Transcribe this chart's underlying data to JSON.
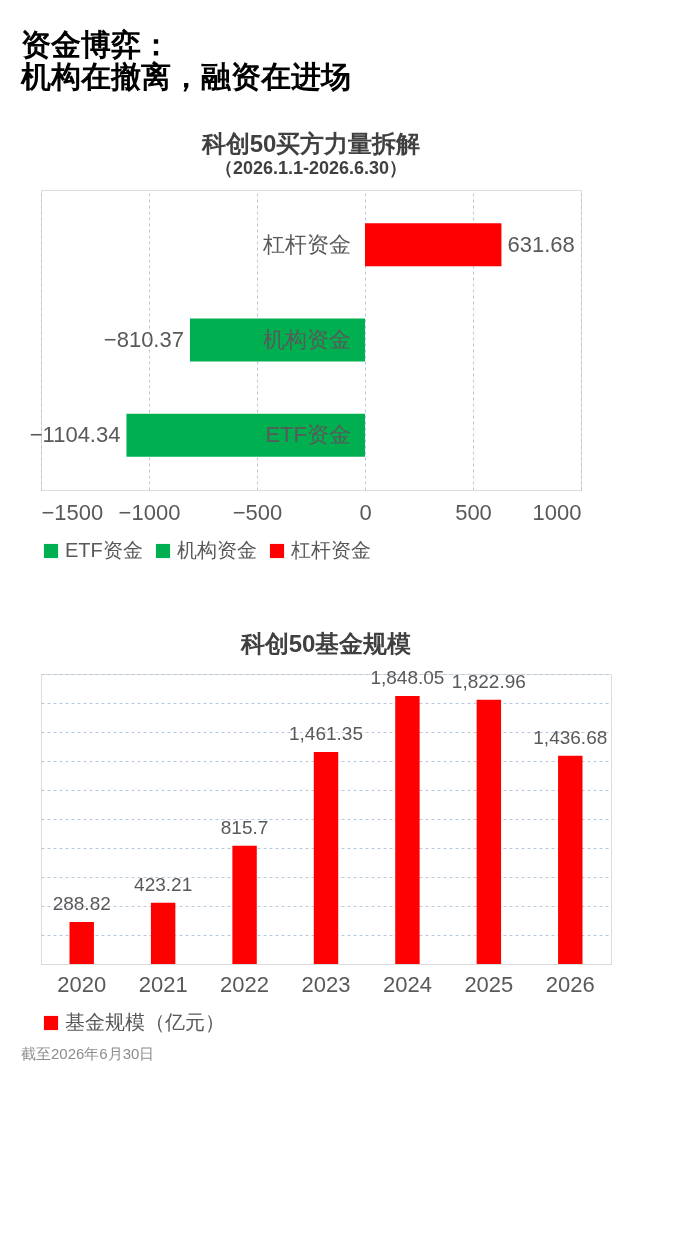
{
  "chart_data": [
    {
      "type": "bar",
      "orientation": "horizontal",
      "title": "科创50买方力量拆解",
      "subtitle": "（2026.1.1-2026.6.30）",
      "annotations": [
        "资金博弈：",
        "机构在撤离，融资在进场"
      ],
      "categories": [
        "杠杆资金",
        "机构资金",
        "ETF资金"
      ],
      "series": [
        {
          "name": "ETF资金",
          "color": "#00b050",
          "values": [
            null,
            null,
            -1104.34
          ]
        },
        {
          "name": "机构资金",
          "color": "#00b050",
          "values": [
            null,
            -810.37,
            null
          ]
        },
        {
          "name": "杠杆资金",
          "color": "#ff0000",
          "values": [
            631.68,
            null,
            null
          ]
        }
      ],
      "xlim": [
        -1500,
        1000
      ],
      "xticks": [
        -1500,
        -1000,
        -500,
        0,
        500,
        1000
      ],
      "grid": "x",
      "legend": "bottom",
      "data_labels": true
    },
    {
      "type": "bar",
      "title": "科创50基金规模",
      "annotations": [
        "截至2026年6月30日"
      ],
      "categories": [
        "2020",
        "2021",
        "2022",
        "2023",
        "2024",
        "2025",
        "2026"
      ],
      "series": [
        {
          "name": "基金规模（亿元）",
          "color": "#ff0000",
          "values": [
            288.82,
            423.21,
            815.7,
            1461.35,
            1848.05,
            1822.96,
            1436.68
          ],
          "value_labels": [
            "288.82",
            "423.21",
            "815.7",
            "1,461.35",
            "1,848.05",
            "1,822.96",
            "1,436.68"
          ]
        }
      ],
      "ylim": [
        0,
        2000
      ],
      "yticks": [
        {
          "value": 0,
          "label": null
        },
        {
          "value": 200,
          "label": null
        },
        {
          "value": 400,
          "label": null
        },
        {
          "value": 600,
          "label": null
        },
        {
          "value": 800,
          "label": null
        },
        {
          "value": 1000,
          "label": null
        },
        {
          "value": 1200,
          "label": null
        },
        {
          "value": 1400,
          "label": null
        },
        {
          "value": 1600,
          "label": null
        },
        {
          "value": 1800,
          "label": null
        },
        {
          "value": 2000,
          "label": null
        }
      ],
      "tick_labels": "x",
      "grid": "y",
      "legend": "bottom"
    }
  ]
}
